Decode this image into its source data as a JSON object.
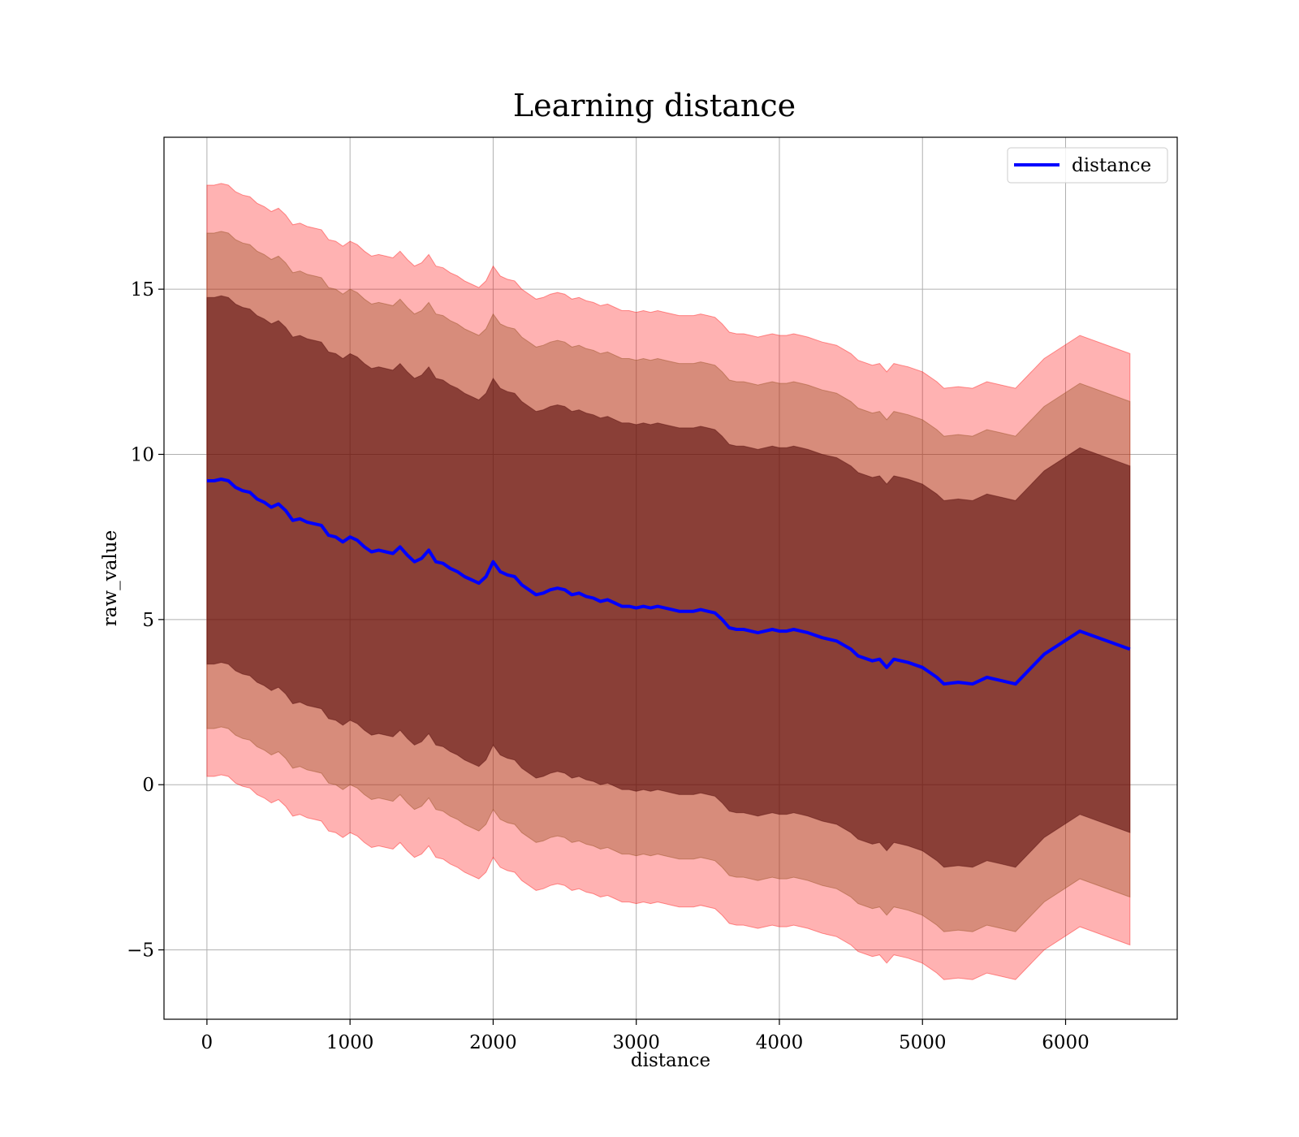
{
  "chart_data": {
    "type": "area",
    "title": "Learning distance",
    "xlabel": "distance",
    "ylabel": "raw_value",
    "xlim": [
      -300,
      6780
    ],
    "ylim": [
      -7.1,
      19.6
    ],
    "xticks": [
      0,
      1000,
      2000,
      3000,
      4000,
      5000,
      6000
    ],
    "yticks": [
      -5,
      0,
      5,
      10,
      15
    ],
    "xtick_labels": [
      "0",
      "1000",
      "2000",
      "3000",
      "4000",
      "5000",
      "6000"
    ],
    "ytick_labels": [
      "−5",
      "0",
      "5",
      "10",
      "15"
    ],
    "grid": true,
    "legend_position": "top-right",
    "colors": {
      "line": "#0000ff",
      "band_outer": "#ff0000",
      "band_middle": "#8b4513",
      "band_inner": "#4b0000"
    },
    "band_offsets": [
      5.55,
      7.5,
      8.95
    ],
    "series": [
      {
        "name": "distance",
        "x": [
          0,
          50,
          100,
          150,
          200,
          250,
          300,
          350,
          400,
          450,
          500,
          550,
          600,
          650,
          700,
          750,
          800,
          850,
          900,
          950,
          1000,
          1050,
          1100,
          1150,
          1200,
          1250,
          1300,
          1350,
          1400,
          1450,
          1500,
          1550,
          1600,
          1650,
          1700,
          1750,
          1800,
          1850,
          1900,
          1950,
          2000,
          2050,
          2100,
          2150,
          2200,
          2250,
          2300,
          2350,
          2400,
          2450,
          2500,
          2550,
          2600,
          2650,
          2700,
          2750,
          2800,
          2850,
          2900,
          2950,
          3000,
          3050,
          3100,
          3150,
          3200,
          3250,
          3300,
          3350,
          3400,
          3450,
          3500,
          3550,
          3600,
          3650,
          3700,
          3750,
          3800,
          3850,
          3900,
          3950,
          4000,
          4050,
          4100,
          4150,
          4200,
          4300,
          4400,
          4500,
          4550,
          4650,
          4700,
          4750,
          4800,
          4850,
          4900,
          5000,
          5050,
          5100,
          5150,
          5250,
          5350,
          5450,
          5550,
          5650,
          5850,
          6100,
          6450
        ],
        "y": [
          9.2,
          9.2,
          9.25,
          9.2,
          9.0,
          8.9,
          8.85,
          8.65,
          8.55,
          8.4,
          8.5,
          8.3,
          8.0,
          8.05,
          7.95,
          7.9,
          7.85,
          7.55,
          7.5,
          7.35,
          7.5,
          7.4,
          7.2,
          7.05,
          7.1,
          7.05,
          7.0,
          7.2,
          6.95,
          6.75,
          6.85,
          7.1,
          6.75,
          6.7,
          6.55,
          6.45,
          6.3,
          6.2,
          6.1,
          6.3,
          6.75,
          6.45,
          6.35,
          6.3,
          6.05,
          5.9,
          5.75,
          5.8,
          5.9,
          5.95,
          5.9,
          5.75,
          5.8,
          5.7,
          5.65,
          5.55,
          5.6,
          5.5,
          5.4,
          5.4,
          5.35,
          5.4,
          5.35,
          5.4,
          5.35,
          5.3,
          5.25,
          5.25,
          5.25,
          5.3,
          5.25,
          5.2,
          5.0,
          4.75,
          4.7,
          4.7,
          4.65,
          4.6,
          4.65,
          4.7,
          4.65,
          4.65,
          4.7,
          4.65,
          4.6,
          4.45,
          4.35,
          4.1,
          3.9,
          3.75,
          3.8,
          3.55,
          3.8,
          3.75,
          3.7,
          3.55,
          3.4,
          3.25,
          3.05,
          3.1,
          3.05,
          3.25,
          3.15,
          3.05,
          3.95,
          4.65,
          4.1
        ]
      }
    ]
  }
}
